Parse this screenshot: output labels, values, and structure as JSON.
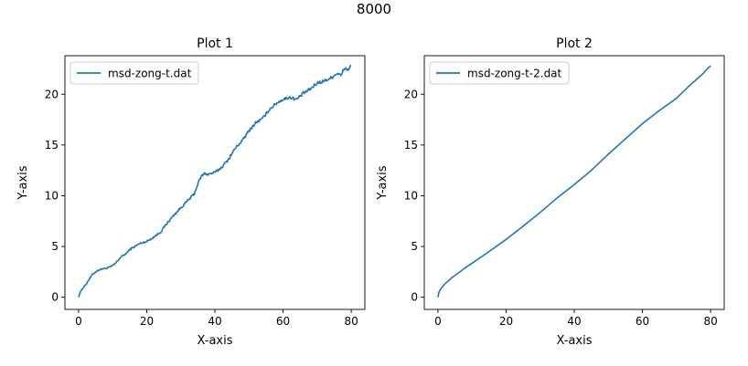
{
  "figure": {
    "suptitle": "8000"
  },
  "chart_data": [
    {
      "type": "line",
      "title": "Plot 1",
      "xlabel": "X-axis",
      "ylabel": "Y-axis",
      "xlim": [
        -4,
        84
      ],
      "ylim": [
        -1.2,
        23.8
      ],
      "xticks": [
        0,
        20,
        40,
        60,
        80
      ],
      "yticks": [
        0,
        5,
        10,
        15,
        20
      ],
      "grid": false,
      "legend": "upper-left",
      "series": [
        {
          "name": "msd-zong-t.dat",
          "color": "#1f77b4",
          "noise": 0.22,
          "x": [
            0,
            0.5,
            1,
            2,
            3,
            4,
            5,
            6,
            7,
            8,
            9,
            10,
            11,
            12,
            13,
            14,
            15,
            16,
            17,
            18,
            19,
            20,
            22,
            24,
            26,
            28,
            30,
            32,
            34,
            35,
            36,
            37,
            38,
            40,
            42,
            44,
            46,
            48,
            50,
            52,
            54,
            56,
            58,
            60,
            62,
            64,
            66,
            68,
            70,
            72,
            74,
            76,
            77,
            78,
            79,
            80
          ],
          "y": [
            0,
            0.5,
            0.8,
            1.2,
            1.7,
            2.2,
            2.5,
            2.7,
            2.8,
            2.85,
            2.95,
            3.1,
            3.4,
            3.8,
            4.1,
            4.3,
            4.7,
            4.9,
            5.1,
            5.3,
            5.4,
            5.5,
            5.9,
            6.4,
            7.3,
            8.1,
            8.8,
            9.5,
            10.2,
            11.2,
            11.9,
            12.2,
            12.1,
            12.3,
            12.8,
            13.6,
            14.7,
            15.4,
            16.4,
            17.2,
            17.6,
            18.5,
            19.1,
            19.5,
            19.7,
            19.5,
            20.1,
            20.5,
            21.1,
            21.3,
            21.6,
            22.1,
            21.8,
            22.6,
            22.4,
            22.8
          ]
        }
      ]
    },
    {
      "type": "line",
      "title": "Plot 2",
      "xlabel": "X-axis",
      "ylabel": "Y-axis",
      "xlim": [
        -4,
        84
      ],
      "ylim": [
        -1.2,
        23.8
      ],
      "xticks": [
        0,
        20,
        40,
        60,
        80
      ],
      "yticks": [
        0,
        5,
        10,
        15,
        20
      ],
      "grid": false,
      "legend": "upper-left",
      "series": [
        {
          "name": "msd-zong-t-2.dat",
          "color": "#1f77b4",
          "noise": 0,
          "x": [
            0,
            0.3,
            1,
            2,
            4,
            6,
            8,
            10,
            15,
            20,
            25,
            30,
            35,
            40,
            45,
            50,
            55,
            60,
            65,
            70,
            74,
            76,
            78,
            79,
            80
          ],
          "y": [
            0,
            0.5,
            0.9,
            1.3,
            1.9,
            2.4,
            2.9,
            3.35,
            4.5,
            5.7,
            7.0,
            8.35,
            9.8,
            11.1,
            12.5,
            14.1,
            15.6,
            17.1,
            18.4,
            19.6,
            20.9,
            21.5,
            22.1,
            22.5,
            22.8
          ]
        }
      ]
    }
  ]
}
